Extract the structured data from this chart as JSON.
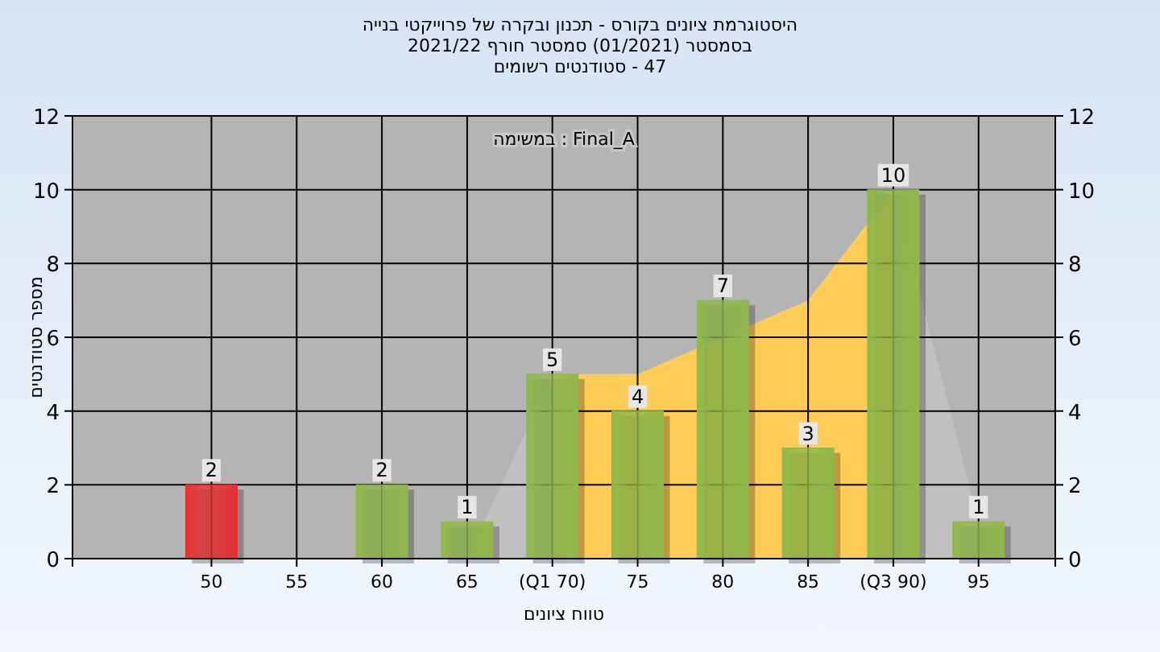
{
  "chart_data": {
    "type": "bar",
    "title": "היסטוגרמת ציונים בקורס - תכנון ובקרה של פרוייקטי בנייה",
    "subtitle": "בסמסטר  (01/2021)  סמסטר חורף 2021/22\n47 - סטודנטים רשומים",
    "xlabel": "טווח ציונים",
    "ylabel": "מספר סטודנטים",
    "annotations": [
      "במשימה : Final_A"
    ],
    "categories": [
      "50",
      "55",
      "60",
      "65",
      "(Q1 70)",
      "75",
      "80",
      "85",
      "(Q3 90)",
      "95"
    ],
    "series": [
      {
        "type": "area",
        "color": "#c0c0c0",
        "values": [
          null,
          null,
          null,
          0,
          5,
          5,
          null,
          7,
          10,
          1
        ]
      },
      {
        "type": "area",
        "color": "#ffcc55",
        "values": [
          null,
          null,
          null,
          null,
          5,
          5,
          null,
          7,
          10,
          null
        ]
      },
      {
        "type": "bar",
        "colors": [
          "#e83030",
          "#8fb84a",
          "#8fb84a",
          "#8fb84a",
          "#8fb84a",
          "#8fb84a",
          "#8fb84a",
          "#8fb84a",
          "#8fb84a",
          "#8fb84a"
        ],
        "values": [
          2,
          0,
          2,
          1,
          5,
          4,
          7,
          3,
          10,
          1
        ],
        "value_labels": [
          "2",
          null,
          "2",
          "1",
          "5",
          "4",
          "7",
          "3",
          "10",
          "1"
        ]
      }
    ],
    "ylim": [
      0,
      12
    ],
    "yticks": [
      0,
      2,
      4,
      6,
      8,
      10,
      12
    ],
    "y2lim": [
      0,
      12
    ],
    "y2ticks": [
      0,
      2,
      4,
      6,
      8,
      10,
      12
    ],
    "grid": true
  }
}
